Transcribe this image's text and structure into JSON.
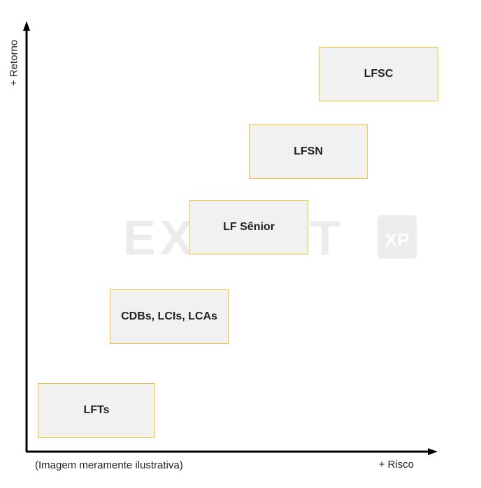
{
  "axes": {
    "y_label": "+ Retorno",
    "x_label": "+ Risco"
  },
  "caption": "(Imagem meramente ilustrativa)",
  "watermark": {
    "text": "EXPERT",
    "badge": "XP"
  },
  "boxes": [
    {
      "label": "LFTs"
    },
    {
      "label": "CDBs, LCIs, LCAs"
    },
    {
      "label": "LF Sênior"
    },
    {
      "label": "LFSN"
    },
    {
      "label": "LFSC"
    }
  ],
  "colors": {
    "box_fill": "#f1f1f1",
    "box_border": "#f2c230",
    "axis": "#000000",
    "text": "#1f1f1f"
  }
}
